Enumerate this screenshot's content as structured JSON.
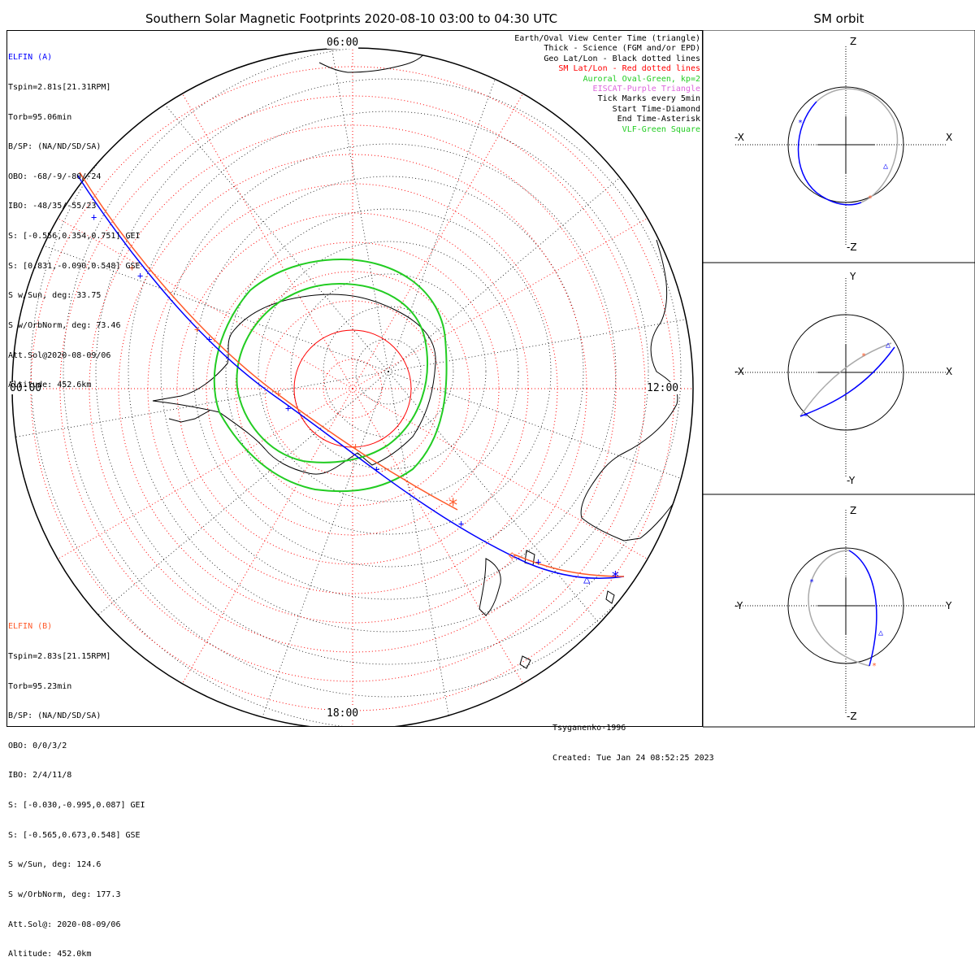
{
  "title": "Southern Solar Magnetic Footprints 2020-08-10 03:00 to 04:30 UTC",
  "orbit_title": "SM orbit",
  "hour_labels": {
    "top": "06:00",
    "left": "00:00",
    "right": "12:00",
    "bottom": "18:00"
  },
  "sat_a": {
    "name": "ELFIN (A)",
    "color": "#0000ff",
    "lines": [
      "Tspin=2.81s[21.31RPM]",
      "Torb=95.06min",
      "B/SP: (NA/ND/SD/SA)",
      "OBO: -68/-9/-80/-24",
      "IBO: -48/35/-55/23",
      "S: [-0.556,0.354,0.751] GEI",
      "S: [0.831,-0.090,0.548] GSE",
      "S w/Sun, deg: 33.75",
      "S w/OrbNorm, deg: 73.46",
      "Att.Sol@2020-08-09/06",
      "Altitude: 452.6km"
    ]
  },
  "sat_b": {
    "name": "ELFIN (B)",
    "color": "#ff5a2a",
    "lines": [
      "Tspin=2.83s[21.15RPM]",
      "Torb=95.23min",
      "B/SP: (NA/ND/SD/SA)",
      "OBO: 0/0/3/2",
      "IBO: 2/4/11/8",
      "S: [-0.030,-0.995,0.087] GEI",
      "S: [-0.565,0.673,0.548] GSE",
      "S w/Sun, deg: 124.6",
      "S w/OrbNorm, deg: 177.3",
      "Att.Sol@: 2020-08-09/06",
      "Altitude: 452.0km"
    ]
  },
  "legend": [
    {
      "text": "Earth/Oval View Center Time (triangle)",
      "color": "#000000"
    },
    {
      "text": "Thick - Science (FGM and/or EPD)",
      "color": "#000000"
    },
    {
      "text": "Geo Lat/Lon - Black dotted lines",
      "color": "#000000"
    },
    {
      "text": "SM Lat/Lon - Red dotted lines",
      "color": "#ff0000"
    },
    {
      "text": "Auroral Oval-Green, kp=2",
      "color": "#22cc22"
    },
    {
      "text": "EISCAT-Purple Triangle",
      "color": "#dd66dd"
    },
    {
      "text": "Tick Marks every 5min",
      "color": "#000000"
    },
    {
      "text": "Start Time-Diamond",
      "color": "#000000"
    },
    {
      "text": "End Time-Asterisk",
      "color": "#000000"
    },
    {
      "text": "VLF-Green Square",
      "color": "#22cc22"
    }
  ],
  "credits": [
    "Tsyganenko-1996",
    "Created: Tue Jan 24 08:52:25 2023"
  ],
  "orbit_panels": [
    {
      "top": "Z",
      "bottom": "-Z",
      "left": "-X",
      "right": "X"
    },
    {
      "top": "Y",
      "bottom": "-Y",
      "left": "-X",
      "right": "X"
    },
    {
      "top": "Z",
      "bottom": "-Z",
      "left": "-Y",
      "right": "Y"
    }
  ],
  "colors": {
    "oval": "#22cc22",
    "sm_grid": "#ff0000",
    "geo_grid": "#000000",
    "orbit_gray": "#aaaaaa"
  }
}
